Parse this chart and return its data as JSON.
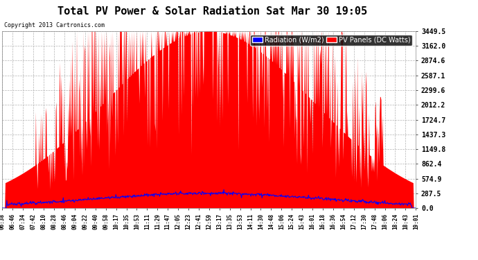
{
  "title": "Total PV Power & Solar Radiation Sat Mar 30 19:05",
  "copyright": "Copyright 2013 Cartronics.com",
  "legend_radiation": "Radiation (W/m2)",
  "legend_pv": "PV Panels (DC Watts)",
  "yticks": [
    0.0,
    287.5,
    574.9,
    862.4,
    1149.8,
    1437.3,
    1724.7,
    2012.2,
    2299.6,
    2587.1,
    2874.6,
    3162.0,
    3449.5
  ],
  "ymax": 3449.5,
  "ymin": 0.0,
  "background_color": "#ffffff",
  "outer_background": "#ffffff",
  "pv_color": "#ff0000",
  "radiation_color": "#0000ff",
  "grid_color": "#aaaaaa",
  "title_color": "#000000",
  "radiation_max": 287.5,
  "xtick_labels": [
    "06:38",
    "06:46",
    "07:34",
    "07:42",
    "08:10",
    "08:28",
    "08:46",
    "09:04",
    "09:22",
    "09:40",
    "09:58",
    "10:17",
    "10:35",
    "10:53",
    "11:11",
    "11:29",
    "11:47",
    "12:05",
    "12:23",
    "12:41",
    "12:59",
    "13:17",
    "13:35",
    "13:53",
    "14:11",
    "14:30",
    "14:48",
    "15:06",
    "15:24",
    "15:43",
    "16:01",
    "16:18",
    "16:36",
    "16:54",
    "17:12",
    "17:30",
    "17:48",
    "18:06",
    "18:24",
    "18:43",
    "19:01"
  ]
}
